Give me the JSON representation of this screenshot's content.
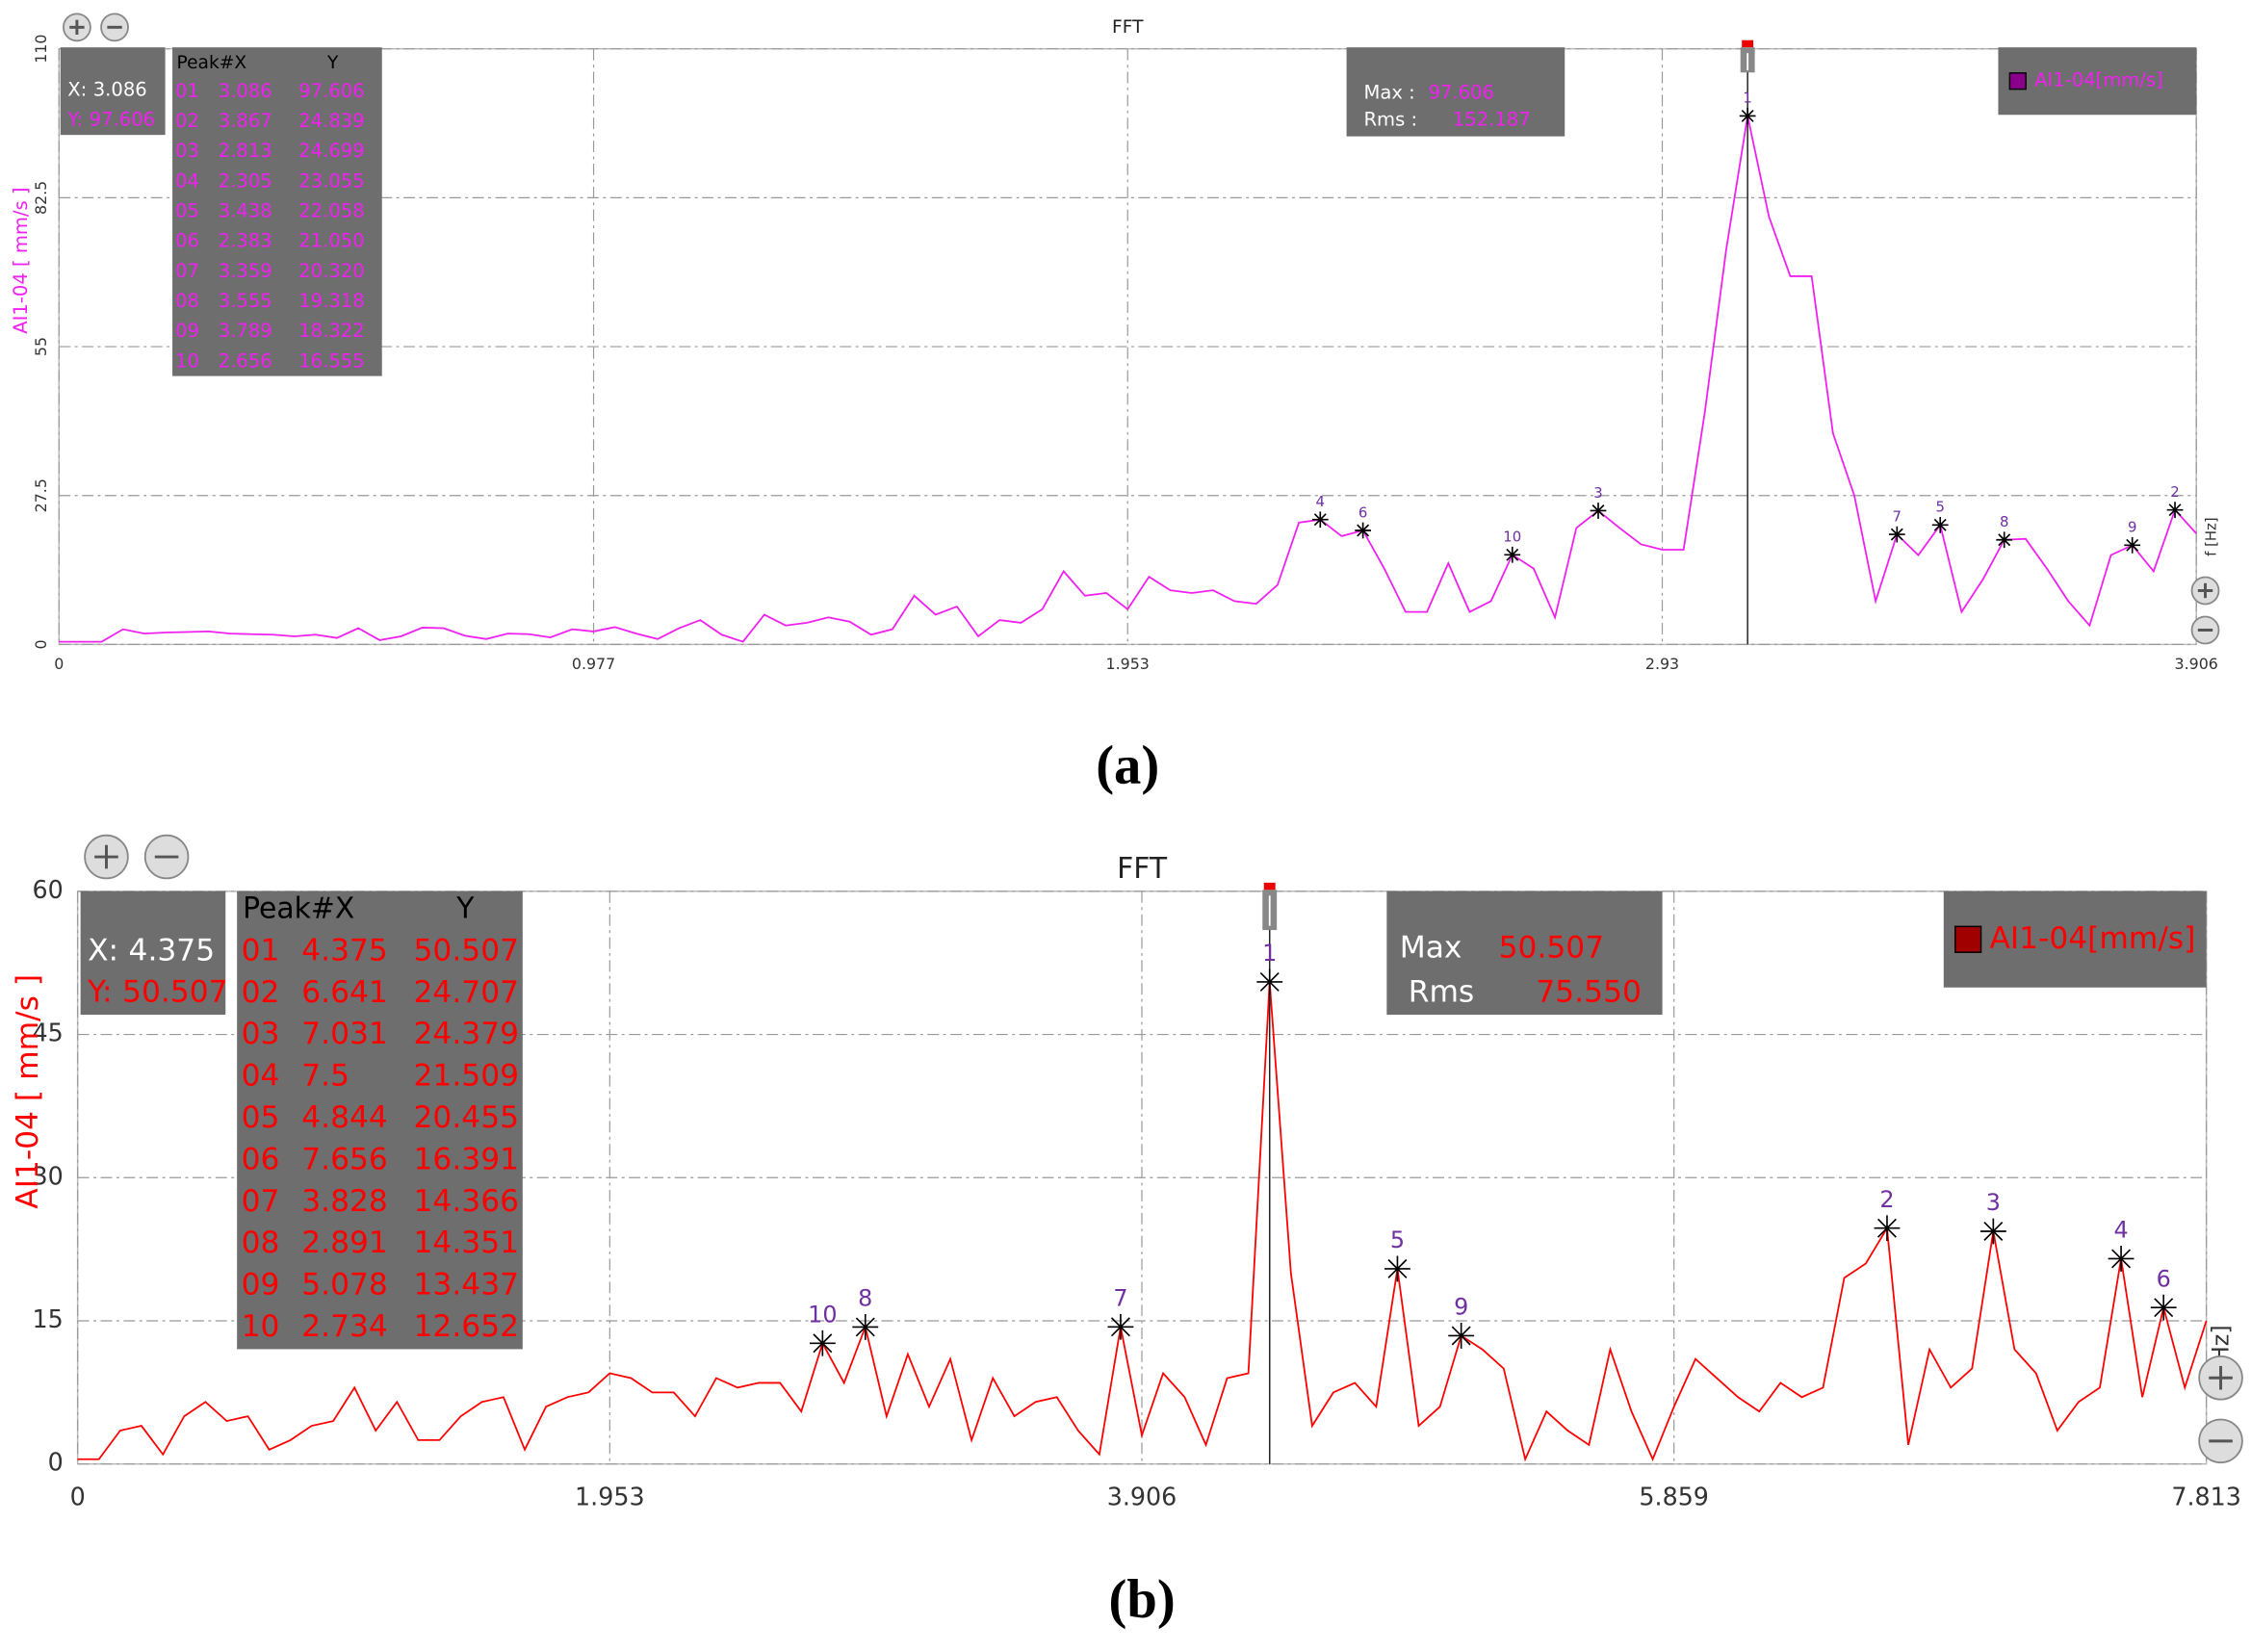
{
  "chart_data": [
    {
      "type": "line",
      "title": "FFT",
      "panel_label": "(a)",
      "ylabel": "AI1-04 [ mm/s ]",
      "xlabel": "f [Hz]",
      "xlim": [
        0,
        3.906
      ],
      "xticks": [
        0,
        0.977,
        1.953,
        2.93,
        3.906
      ],
      "ylim": [
        0,
        110
      ],
      "yticks": [
        0,
        27.5,
        55,
        82.5,
        110
      ],
      "grid": true,
      "x": [
        0,
        0.039,
        0.078,
        0.117,
        0.156,
        0.195,
        0.234,
        0.273,
        0.313,
        0.352,
        0.391,
        0.43,
        0.469,
        0.508,
        0.547,
        0.586,
        0.625,
        0.664,
        0.703,
        0.742,
        0.781,
        0.82,
        0.859,
        0.898,
        0.938,
        0.977,
        1.016,
        1.055,
        1.094,
        1.133,
        1.172,
        1.211,
        1.25,
        1.289,
        1.328,
        1.367,
        1.406,
        1.445,
        1.484,
        1.523,
        1.563,
        1.602,
        1.641,
        1.68,
        1.719,
        1.758,
        1.797,
        1.836,
        1.875,
        1.914,
        1.953,
        1.992,
        2.031,
        2.07,
        2.109,
        2.148,
        2.188,
        2.227,
        2.266,
        2.305,
        2.344,
        2.383,
        2.422,
        2.461,
        2.5,
        2.539,
        2.578,
        2.617,
        2.656,
        2.695,
        2.734,
        2.773,
        2.813,
        2.852,
        2.891,
        2.93,
        2.969,
        3.008,
        3.047,
        3.086,
        3.125,
        3.164,
        3.203,
        3.242,
        3.281,
        3.32,
        3.359,
        3.398,
        3.438,
        3.477,
        3.516,
        3.555,
        3.594,
        3.633,
        3.672,
        3.711,
        3.75,
        3.789,
        3.828,
        3.867,
        3.906
      ],
      "series": [
        {
          "name": "AI1-04[mm/s]",
          "color": "#f020f0",
          "legend_color": "#8b008b",
          "values": [
            0.5,
            0.5,
            0.5,
            2.8,
            2.0,
            2.2,
            2.3,
            2.4,
            2.0,
            1.9,
            1.8,
            1.5,
            1.8,
            1.2,
            3.0,
            0.8,
            1.5,
            3.1,
            3.0,
            1.6,
            1.0,
            2.0,
            1.9,
            1.3,
            2.8,
            2.4,
            3.2,
            2.0,
            1.0,
            3.0,
            4.5,
            1.8,
            0.5,
            5.5,
            3.5,
            4.0,
            5.0,
            4.2,
            1.8,
            2.8,
            9.0,
            5.5,
            7.0,
            1.5,
            4.5,
            4.0,
            6.5,
            13.5,
            9.0,
            9.5,
            6.5,
            12.5,
            10.0,
            9.5,
            10.0,
            8.0,
            7.5,
            11.0,
            22.5,
            23.055,
            20.0,
            21.05,
            14.0,
            6.0,
            6.0,
            15.0,
            6.0,
            8.0,
            16.555,
            14.0,
            5.0,
            21.5,
            24.699,
            21.5,
            18.5,
            17.5,
            17.5,
            43.0,
            73.0,
            97.606,
            79.0,
            68.0,
            68.0,
            39.0,
            27.5,
            8.0,
            20.32,
            16.5,
            22.058,
            6.0,
            12.0,
            19.318,
            19.5,
            14.0,
            8.0,
            3.5,
            16.5,
            18.322,
            13.5,
            24.839,
            20.5
          ]
        }
      ],
      "cursor": {
        "x_label": "X:",
        "x": 3.086,
        "y_label": "Y:",
        "y": 97.606
      },
      "peak_header": [
        "Peak#X",
        "Y"
      ],
      "peaks": {
        "ids": [
          "01",
          "02",
          "03",
          "04",
          "05",
          "06",
          "07",
          "08",
          "09",
          "10"
        ],
        "marker_labels": [
          "1",
          "2",
          "3",
          "4",
          "5",
          "6",
          "7",
          "8",
          "9",
          "10"
        ],
        "x": [
          3.086,
          3.867,
          2.813,
          2.305,
          3.438,
          2.383,
          3.359,
          3.555,
          3.789,
          2.656
        ],
        "values": [
          97.606,
          24.839,
          24.699,
          23.055,
          22.058,
          21.05,
          20.32,
          19.318,
          18.322,
          16.555
        ],
        "value_labels": [
          "97.606",
          "24.839",
          "24.699",
          "23.055",
          "22.058",
          "21.050",
          "20.320",
          "19.318",
          "18.322",
          "16.555"
        ]
      },
      "stats": {
        "max_label": "Max :",
        "max": "97.606",
        "rms_label": "Rms :",
        "rms": "152.187"
      }
    },
    {
      "type": "line",
      "title": "FFT",
      "panel_label": "(b)",
      "ylabel": "AI1-04 [ mm/s ]",
      "xlabel": "f [Hz]",
      "xlim": [
        0,
        7.813
      ],
      "xticks": [
        0,
        1.953,
        3.906,
        5.859,
        7.813
      ],
      "ylim": [
        0,
        60
      ],
      "yticks": [
        0,
        15,
        30,
        45,
        60
      ],
      "grid": true,
      "x": [
        0,
        0.078,
        0.156,
        0.234,
        0.313,
        0.391,
        0.469,
        0.547,
        0.625,
        0.703,
        0.781,
        0.859,
        0.938,
        1.016,
        1.094,
        1.172,
        1.25,
        1.328,
        1.406,
        1.484,
        1.563,
        1.641,
        1.719,
        1.797,
        1.875,
        1.953,
        2.031,
        2.109,
        2.188,
        2.266,
        2.344,
        2.422,
        2.5,
        2.578,
        2.656,
        2.734,
        2.813,
        2.891,
        2.969,
        3.047,
        3.125,
        3.203,
        3.281,
        3.359,
        3.438,
        3.516,
        3.594,
        3.672,
        3.75,
        3.828,
        3.906,
        3.984,
        4.063,
        4.141,
        4.219,
        4.297,
        4.375,
        4.453,
        4.531,
        4.609,
        4.688,
        4.766,
        4.844,
        4.922,
        5,
        5.078,
        5.156,
        5.234,
        5.313,
        5.391,
        5.469,
        5.547,
        5.625,
        5.703,
        5.781,
        5.859,
        5.938,
        6.016,
        6.094,
        6.172,
        6.25,
        6.328,
        6.406,
        6.484,
        6.563,
        6.641,
        6.719,
        6.797,
        6.875,
        6.953,
        7.031,
        7.109,
        7.188,
        7.266,
        7.344,
        7.422,
        7.5,
        7.578,
        7.656,
        7.734,
        7.813
      ],
      "series": [
        {
          "name": "AI1-04[mm/s]",
          "color": "#ff0000",
          "legend_color": "#a00000",
          "values": [
            0.5,
            0.5,
            3.5,
            4,
            1,
            5,
            6.5,
            4.5,
            5,
            1.5,
            2.5,
            4,
            4.5,
            8,
            3.5,
            6.5,
            2.5,
            2.5,
            5,
            6.5,
            7,
            1.5,
            6,
            7,
            7.5,
            9.5,
            9,
            7.5,
            7.5,
            5,
            9,
            8,
            8.5,
            8.5,
            5.5,
            12.652,
            8.5,
            14.351,
            5,
            11.5,
            6,
            11,
            2.5,
            9,
            5,
            6.5,
            7,
            3.5,
            1,
            14.366,
            3,
            9.5,
            7,
            2,
            9,
            9.5,
            50.507,
            20,
            4,
            7.5,
            8.5,
            6,
            20.455,
            4,
            6,
            13.437,
            12,
            10,
            0.5,
            5.5,
            3.5,
            2,
            12,
            5.5,
            0.5,
            6,
            11,
            9,
            7,
            5.5,
            8.5,
            7,
            8,
            19.5,
            21,
            24.707,
            2,
            12,
            8,
            10,
            24.379,
            12,
            9.5,
            3.5,
            6.5,
            8,
            21.509,
            7,
            16.391,
            8,
            15
          ]
        }
      ],
      "cursor": {
        "x_label": "X:",
        "x": 4.375,
        "y_label": "Y:",
        "y": 50.507
      },
      "peak_header": [
        "Peak#X",
        "Y"
      ],
      "peaks": {
        "ids": [
          "01",
          "02",
          "03",
          "04",
          "05",
          "06",
          "07",
          "08",
          "09",
          "10"
        ],
        "marker_labels": [
          "1",
          "2",
          "3",
          "4",
          "5",
          "6",
          "7",
          "8",
          "9",
          "10"
        ],
        "x": [
          4.375,
          6.641,
          7.031,
          7.5,
          4.844,
          7.656,
          3.828,
          2.891,
          5.078,
          2.734
        ],
        "values": [
          50.507,
          24.707,
          24.379,
          21.509,
          20.455,
          16.391,
          14.366,
          14.351,
          13.437,
          12.652
        ],
        "value_labels": [
          "50.507",
          "24.707",
          "24.379",
          "21.509",
          "20.455",
          "16.391",
          "14.366",
          "14.351",
          "13.437",
          "12.652"
        ]
      },
      "stats": {
        "max_label": "Max",
        "max": "50.507",
        "rms_label": "Rms",
        "rms": "75.550"
      }
    }
  ]
}
